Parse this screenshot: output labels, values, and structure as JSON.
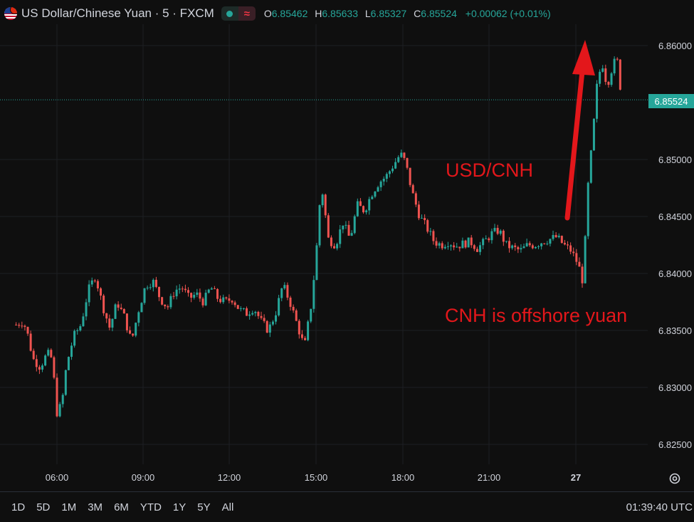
{
  "header": {
    "title": "US Dollar/Chinese Yuan · 5 · FXCM",
    "ohlc": {
      "o_key": "O",
      "o": "6.85462",
      "h_key": "H",
      "h": "6.85633",
      "l_key": "L",
      "l": "6.85327",
      "c_key": "C",
      "c": "6.85524",
      "change": "+0.00062 (+0.01%)"
    },
    "status_icon": "wave-icon"
  },
  "current_price_label": "6.85524",
  "annotations": {
    "pair": "USD/CNH",
    "note": "CNH is offshore yuan"
  },
  "toolbar": {
    "ranges": [
      "1D",
      "5D",
      "1M",
      "3M",
      "6M",
      "YTD",
      "1Y",
      "5Y",
      "All"
    ],
    "clock": "01:39:40 UTC"
  },
  "colors": {
    "background": "#0f0f0f",
    "up": "#26a69a",
    "down": "#ef5350",
    "annotation": "#e3171b",
    "grid": "#1e1f23"
  },
  "chart_data": {
    "type": "candlestick",
    "title": "US Dollar/Chinese Yuan · 5 · FXCM",
    "x_ticks": [
      "06:00",
      "09:00",
      "12:00",
      "15:00",
      "18:00",
      "21:00",
      "27"
    ],
    "y_ticks": [
      "6.86000",
      "6.85000",
      "6.84500",
      "6.84000",
      "6.83500",
      "6.83000",
      "6.82500"
    ],
    "ylim": [
      6.822,
      6.8625
    ],
    "grid": true,
    "current_price": 6.85524,
    "price_path": [
      [
        "04:35",
        6.8355
      ],
      [
        "04:50",
        6.8358
      ],
      [
        "05:00",
        6.8345
      ],
      [
        "05:10",
        6.8325
      ],
      [
        "05:25",
        6.8318
      ],
      [
        "05:40",
        6.833
      ],
      [
        "05:50",
        6.8325
      ],
      [
        "06:00",
        6.8278
      ],
      [
        "06:10",
        6.8285
      ],
      [
        "06:20",
        6.832
      ],
      [
        "06:35",
        6.8345
      ],
      [
        "06:50",
        6.8355
      ],
      [
        "07:05",
        6.8385
      ],
      [
        "07:20",
        6.8398
      ],
      [
        "07:35",
        6.8372
      ],
      [
        "07:50",
        6.8352
      ],
      [
        "08:05",
        6.8375
      ],
      [
        "08:20",
        6.8362
      ],
      [
        "08:35",
        6.834
      ],
      [
        "08:50",
        6.8368
      ],
      [
        "09:05",
        6.839
      ],
      [
        "09:20",
        6.8393
      ],
      [
        "09:35",
        6.8378
      ],
      [
        "09:50",
        6.837
      ],
      [
        "10:05",
        6.8385
      ],
      [
        "10:20",
        6.8388
      ],
      [
        "10:35",
        6.8378
      ],
      [
        "10:50",
        6.8382
      ],
      [
        "11:05",
        6.8375
      ],
      [
        "11:20",
        6.8388
      ],
      [
        "11:35",
        6.8378
      ],
      [
        "11:50",
        6.8375
      ],
      [
        "12:05",
        6.8378
      ],
      [
        "12:20",
        6.8368
      ],
      [
        "12:35",
        6.8365
      ],
      [
        "12:50",
        6.837
      ],
      [
        "13:05",
        6.8358
      ],
      [
        "13:20",
        6.835
      ],
      [
        "13:35",
        6.8365
      ],
      [
        "13:50",
        6.839
      ],
      [
        "14:05",
        6.8375
      ],
      [
        "14:20",
        6.8355
      ],
      [
        "14:35",
        6.8335
      ],
      [
        "14:50",
        6.8375
      ],
      [
        "15:00",
        6.842
      ],
      [
        "15:10",
        6.848
      ],
      [
        "15:25",
        6.843
      ],
      [
        "15:40",
        6.8425
      ],
      [
        "15:55",
        6.8445
      ],
      [
        "16:10",
        6.843
      ],
      [
        "16:25",
        6.846
      ],
      [
        "16:40",
        6.8455
      ],
      [
        "16:55",
        6.847
      ],
      [
        "17:10",
        6.848
      ],
      [
        "17:25",
        6.8485
      ],
      [
        "17:40",
        6.8495
      ],
      [
        "17:55",
        6.8505
      ],
      [
        "18:05",
        6.8498
      ],
      [
        "18:20",
        6.847
      ],
      [
        "18:35",
        6.845
      ],
      [
        "18:50",
        6.844
      ],
      [
        "19:05",
        6.8428
      ],
      [
        "19:20",
        6.8425
      ],
      [
        "19:35",
        6.8428
      ],
      [
        "19:50",
        6.8424
      ],
      [
        "20:05",
        6.8426
      ],
      [
        "20:20",
        6.8428
      ],
      [
        "20:35",
        6.8422
      ],
      [
        "20:50",
        6.8428
      ],
      [
        "21:05",
        6.8435
      ],
      [
        "21:20",
        6.8438
      ],
      [
        "21:35",
        6.8425
      ],
      [
        "21:50",
        6.8422
      ],
      [
        "22:05",
        6.842
      ],
      [
        "22:20",
        6.8425
      ],
      [
        "22:35",
        6.8425
      ],
      [
        "22:50",
        6.8428
      ],
      [
        "23:05",
        6.843
      ],
      [
        "23:20",
        6.8432
      ],
      [
        "23:35",
        6.8425
      ],
      [
        "23:50",
        6.842
      ],
      [
        "00:05",
        6.8408
      ],
      [
        "00:15",
        6.8392
      ],
      [
        "00:25",
        6.8475
      ],
      [
        "00:35",
        6.852
      ],
      [
        "00:45",
        6.857
      ],
      [
        "00:55",
        6.8585
      ],
      [
        "01:05",
        6.8565
      ],
      [
        "01:15",
        6.858
      ],
      [
        "01:25",
        6.859
      ],
      [
        "01:35",
        6.8555
      ]
    ]
  }
}
